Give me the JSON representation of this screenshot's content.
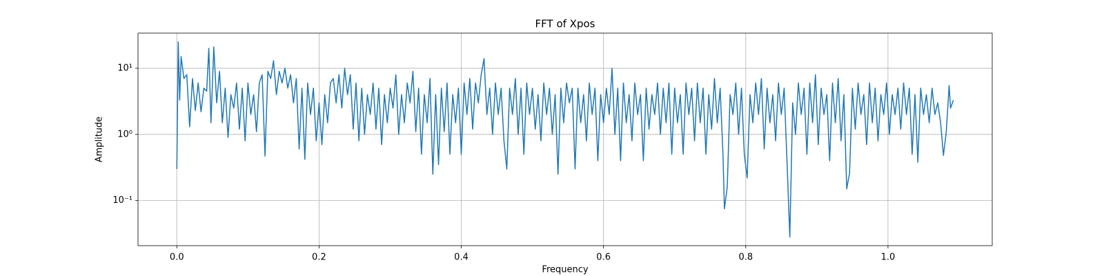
{
  "chart_data": {
    "type": "line",
    "title": "FFT of Xpos",
    "x_label": "Frequency",
    "y_label": "Amplitude",
    "log_y": true,
    "grid": true,
    "xlim": [
      -0.0546,
      1.1466
    ],
    "ylim": [
      0.0208,
      34
    ],
    "xticks": [
      {
        "value": 0,
        "label": "0.0"
      },
      {
        "value": 0.2,
        "label": "0.2"
      },
      {
        "value": 0.4,
        "label": "0.4"
      },
      {
        "value": 0.6,
        "label": "0.6"
      },
      {
        "value": 0.8,
        "label": "0.8"
      },
      {
        "value": 1,
        "label": "1.0"
      }
    ],
    "yticks": [
      {
        "value": 0.1,
        "label": "10⁻¹"
      },
      {
        "value": 1,
        "label": "10⁰"
      },
      {
        "value": 10,
        "label": "10¹"
      }
    ],
    "x": [
      0,
      0.002,
      0.004,
      0.006,
      0.01,
      0.014,
      0.018,
      0.022,
      0.026,
      0.03,
      0.034,
      0.038,
      0.042,
      0.045,
      0.048,
      0.052,
      0.056,
      0.06,
      0.064,
      0.068,
      0.072,
      0.076,
      0.08,
      0.084,
      0.088,
      0.092,
      0.096,
      0.1,
      0.104,
      0.108,
      0.112,
      0.116,
      0.12,
      0.124,
      0.128,
      0.132,
      0.136,
      0.14,
      0.144,
      0.148,
      0.152,
      0.156,
      0.16,
      0.164,
      0.168,
      0.172,
      0.176,
      0.18,
      0.184,
      0.188,
      0.192,
      0.196,
      0.2,
      0.204,
      0.208,
      0.212,
      0.216,
      0.22,
      0.224,
      0.228,
      0.232,
      0.236,
      0.24,
      0.244,
      0.248,
      0.252,
      0.256,
      0.26,
      0.264,
      0.268,
      0.272,
      0.276,
      0.28,
      0.284,
      0.288,
      0.292,
      0.296,
      0.3,
      0.304,
      0.308,
      0.312,
      0.316,
      0.32,
      0.324,
      0.328,
      0.332,
      0.336,
      0.34,
      0.344,
      0.348,
      0.352,
      0.356,
      0.36,
      0.364,
      0.368,
      0.372,
      0.376,
      0.38,
      0.384,
      0.388,
      0.392,
      0.396,
      0.4,
      0.404,
      0.408,
      0.412,
      0.416,
      0.42,
      0.424,
      0.428,
      0.432,
      0.436,
      0.44,
      0.444,
      0.448,
      0.452,
      0.456,
      0.46,
      0.464,
      0.468,
      0.472,
      0.476,
      0.48,
      0.484,
      0.488,
      0.492,
      0.496,
      0.5,
      0.504,
      0.508,
      0.512,
      0.516,
      0.52,
      0.524,
      0.528,
      0.532,
      0.536,
      0.54,
      0.544,
      0.548,
      0.552,
      0.556,
      0.56,
      0.564,
      0.568,
      0.572,
      0.576,
      0.58,
      0.584,
      0.588,
      0.592,
      0.596,
      0.6,
      0.604,
      0.608,
      0.612,
      0.616,
      0.62,
      0.624,
      0.628,
      0.632,
      0.636,
      0.64,
      0.644,
      0.648,
      0.652,
      0.656,
      0.66,
      0.664,
      0.668,
      0.672,
      0.676,
      0.68,
      0.684,
      0.688,
      0.692,
      0.696,
      0.7,
      0.704,
      0.708,
      0.712,
      0.716,
      0.72,
      0.724,
      0.728,
      0.732,
      0.736,
      0.74,
      0.744,
      0.748,
      0.752,
      0.756,
      0.76,
      0.764,
      0.768,
      0.77,
      0.774,
      0.778,
      0.782,
      0.786,
      0.79,
      0.794,
      0.798,
      0.802,
      0.806,
      0.81,
      0.814,
      0.818,
      0.822,
      0.826,
      0.83,
      0.834,
      0.838,
      0.842,
      0.846,
      0.85,
      0.854,
      0.858,
      0.862,
      0.866,
      0.87,
      0.874,
      0.878,
      0.882,
      0.886,
      0.89,
      0.894,
      0.898,
      0.902,
      0.906,
      0.91,
      0.914,
      0.918,
      0.922,
      0.926,
      0.93,
      0.934,
      0.938,
      0.942,
      0.946,
      0.95,
      0.954,
      0.958,
      0.962,
      0.966,
      0.97,
      0.974,
      0.978,
      0.982,
      0.986,
      0.99,
      0.994,
      0.998,
      1.002,
      1.006,
      1.01,
      1.014,
      1.018,
      1.022,
      1.026,
      1.03,
      1.034,
      1.038,
      1.042,
      1.046,
      1.05,
      1.054,
      1.058,
      1.062,
      1.066,
      1.07,
      1.074,
      1.078,
      1.082,
      1.086,
      1.088,
      1.092
    ],
    "series": [
      {
        "color": "#1f77b4",
        "values": [
          0.3,
          25,
          3.3,
          15,
          7,
          8,
          1.3,
          7,
          2.3,
          6,
          2.2,
          5,
          4.5,
          20,
          1.5,
          21,
          3,
          9,
          1.5,
          5,
          0.9,
          4,
          2.5,
          6,
          1.2,
          5,
          0.8,
          6,
          2,
          4,
          1.1,
          6,
          8,
          0.47,
          9,
          7,
          13,
          4,
          9,
          6,
          10,
          5,
          8,
          3,
          7,
          0.6,
          5,
          0.42,
          6,
          2,
          5,
          0.8,
          3,
          0.7,
          4,
          1.5,
          6,
          7,
          3,
          8,
          2.5,
          10,
          4,
          8,
          1.2,
          6,
          0.8,
          5,
          1,
          4,
          2,
          6,
          1.2,
          5,
          0.7,
          4,
          1.5,
          5,
          2.5,
          8,
          1,
          4,
          1.5,
          6,
          3,
          9,
          1.1,
          5,
          0.5,
          4,
          1.5,
          7,
          0.25,
          4,
          0.35,
          5,
          1.1,
          6,
          0.5,
          4,
          1.5,
          5,
          0.5,
          6,
          2,
          7,
          1.2,
          6,
          3,
          8,
          14,
          2,
          5,
          1,
          6,
          2,
          5,
          0.8,
          0.3,
          5,
          2,
          7,
          1,
          5,
          0.5,
          6,
          2,
          5,
          1.2,
          4,
          0.8,
          6,
          2,
          5,
          1,
          4,
          0.25,
          5,
          1.5,
          6,
          3,
          5,
          0.3,
          5,
          1.5,
          4,
          0.8,
          6,
          2,
          5,
          0.4,
          4,
          1.5,
          5,
          2,
          10,
          1,
          5,
          0.4,
          6,
          1.5,
          4,
          0.8,
          6,
          2,
          4,
          0.4,
          5,
          1.2,
          4,
          2,
          6,
          1,
          5,
          1.5,
          6,
          0.5,
          5,
          1.5,
          4,
          0.5,
          6,
          2,
          5,
          0.8,
          6,
          1.5,
          5,
          0.5,
          4,
          1.2,
          7,
          1.5,
          5,
          0.5,
          0.075,
          0.16,
          4,
          2,
          6,
          1,
          5,
          0.5,
          0.22,
          4,
          1.5,
          6,
          2,
          7,
          0.6,
          5,
          1.5,
          4,
          0.8,
          6,
          2,
          5,
          0.4,
          0.028,
          3,
          1,
          6,
          2,
          5,
          0.5,
          6,
          1.5,
          8,
          0.7,
          5,
          2,
          4,
          0.4,
          6,
          1.5,
          7,
          0.8,
          4,
          0.15,
          0.26,
          5,
          1.2,
          6,
          2,
          4,
          0.7,
          6,
          1.5,
          5,
          0.8,
          4,
          2,
          6,
          1,
          4,
          2,
          5,
          1.2,
          6,
          2,
          5,
          0.5,
          4,
          0.38,
          5,
          2,
          4,
          1.5,
          5,
          2,
          3,
          1.5,
          0.48,
          1.1,
          5.5,
          2.5,
          3.3
        ]
      }
    ]
  }
}
